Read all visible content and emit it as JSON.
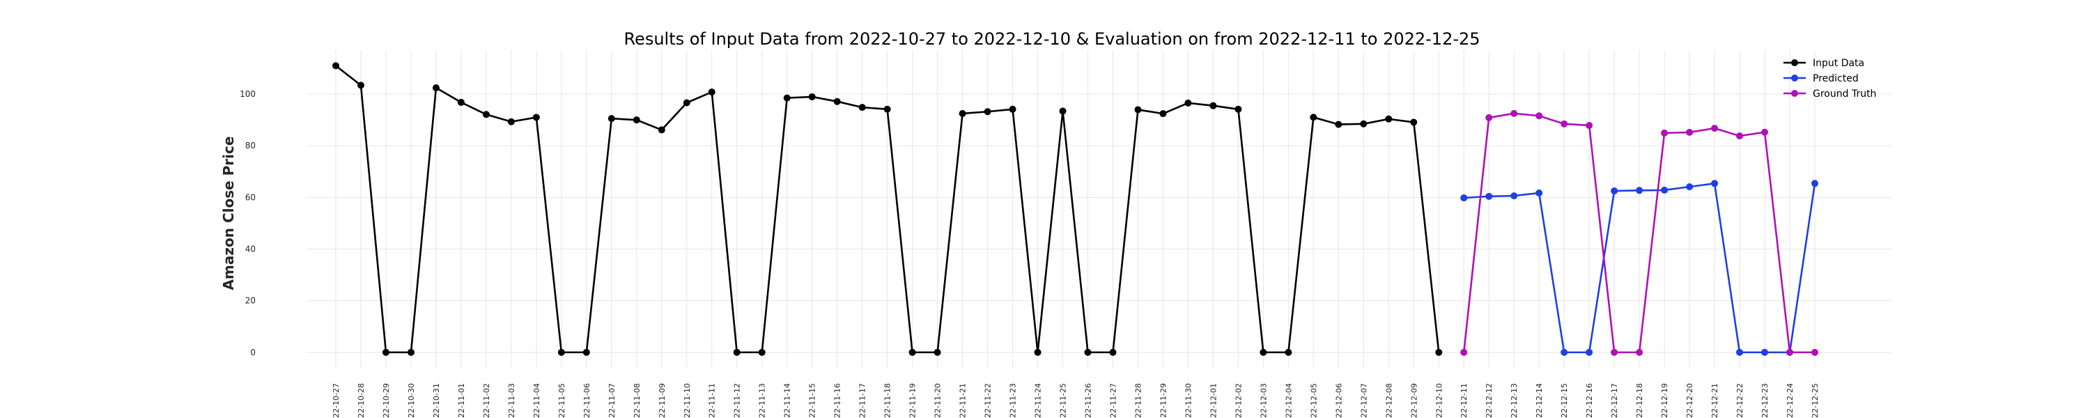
{
  "chart_data": {
    "type": "line",
    "title": "Results of Input Data from 2022-10-27 to 2022-12-10 & Evaluation on from 2022-12-11 to 2022-12-25",
    "xlabel": "",
    "ylabel": "Amazon Close Price",
    "ylim": [
      -6,
      117
    ],
    "yticks": [
      "0",
      "20",
      "40",
      "60",
      "80",
      "100"
    ],
    "grid": true,
    "legend_position": "top-right",
    "x": [
      "2022-10-27",
      "2022-10-28",
      "2022-10-29",
      "2022-10-30",
      "2022-10-31",
      "2022-11-01",
      "2022-11-02",
      "2022-11-03",
      "2022-11-04",
      "2022-11-05",
      "2022-11-06",
      "2022-11-07",
      "2022-11-08",
      "2022-11-09",
      "2022-11-10",
      "2022-11-11",
      "2022-11-12",
      "2022-11-13",
      "2022-11-14",
      "2022-11-15",
      "2022-11-16",
      "2022-11-17",
      "2022-11-18",
      "2022-11-19",
      "2022-11-20",
      "2022-11-21",
      "2022-11-22",
      "2022-11-23",
      "2022-11-24",
      "2022-11-25",
      "2022-11-26",
      "2022-11-27",
      "2022-11-28",
      "2022-11-29",
      "2022-11-30",
      "2022-12-01",
      "2022-12-02",
      "2022-12-03",
      "2022-12-04",
      "2022-12-05",
      "2022-12-06",
      "2022-12-07",
      "2022-12-08",
      "2022-12-09",
      "2022-12-10",
      "2022-12-11",
      "2022-12-12",
      "2022-12-13",
      "2022-12-14",
      "2022-12-15",
      "2022-12-16",
      "2022-12-17",
      "2022-12-18",
      "2022-12-19",
      "2022-12-20",
      "2022-12-21",
      "2022-12-22",
      "2022-12-23",
      "2022-12-24",
      "2022-12-25"
    ],
    "xtick_labels": [
      "-22-10-27",
      "-22-10-28",
      "-22-10-29",
      "-22-10-30",
      "-22-10-31",
      "-22-11-01",
      "-22-11-02",
      "-22-11-03",
      "-22-11-04",
      "-22-11-05",
      "-22-11-06",
      "-22-11-07",
      "-22-11-08",
      "-22-11-09",
      "-22-11-10",
      "-22-11-11",
      "-22-11-12",
      "-22-11-13",
      "-22-11-14",
      "-22-11-15",
      "-22-11-16",
      "-22-11-17",
      "-22-11-18",
      "-22-11-19",
      "-22-11-20",
      "-22-11-21",
      "-22-11-22",
      "-22-11-23",
      "-22-11-24",
      "-22-11-25",
      "-22-11-26",
      "-22-11-27",
      "-22-11-28",
      "-22-11-29",
      "-22-11-30",
      "-22-12-01",
      "-22-12-02",
      "-22-12-03",
      "-22-12-04",
      "-22-12-05",
      "-22-12-06",
      "-22-12-07",
      "-22-12-08",
      "-22-12-09",
      "-22-12-10",
      "-22-12-11",
      "-22-12-12",
      "-22-12-13",
      "-22-12-14",
      "-22-12-15",
      "-22-12-16",
      "-22-12-17",
      "-22-12-18",
      "-22-12-19",
      "-22-12-20",
      "-22-12-21",
      "-22-12-22",
      "-22-12-23",
      "-22-12-24",
      "-22-12-25"
    ],
    "series": [
      {
        "name": "Input Data",
        "color": "#000000",
        "x": [
          "2022-10-27",
          "2022-10-28",
          "2022-10-29",
          "2022-10-30",
          "2022-10-31",
          "2022-11-01",
          "2022-11-02",
          "2022-11-03",
          "2022-11-04",
          "2022-11-05",
          "2022-11-06",
          "2022-11-07",
          "2022-11-08",
          "2022-11-09",
          "2022-11-10",
          "2022-11-11",
          "2022-11-12",
          "2022-11-13",
          "2022-11-14",
          "2022-11-15",
          "2022-11-16",
          "2022-11-17",
          "2022-11-18",
          "2022-11-19",
          "2022-11-20",
          "2022-11-21",
          "2022-11-22",
          "2022-11-23",
          "2022-11-24",
          "2022-11-25",
          "2022-11-26",
          "2022-11-27",
          "2022-11-28",
          "2022-11-29",
          "2022-11-30",
          "2022-12-01",
          "2022-12-02",
          "2022-12-03",
          "2022-12-04",
          "2022-12-05",
          "2022-12-06",
          "2022-12-07",
          "2022-12-08",
          "2022-12-09",
          "2022-12-10"
        ],
        "values": [
          110.96,
          103.41,
          0,
          0,
          102.44,
          96.79,
          92.12,
          89.3,
          90.98,
          0,
          0,
          90.53,
          89.98,
          86.14,
          96.63,
          100.79,
          0,
          0,
          98.49,
          98.94,
          97.12,
          94.85,
          94.14,
          0,
          0,
          92.46,
          93.2,
          94.13,
          0,
          93.41,
          0,
          0,
          93.95,
          92.42,
          96.54,
          95.5,
          94.13,
          0,
          0,
          91.01,
          88.25,
          88.46,
          90.35,
          89.09,
          0
        ]
      },
      {
        "name": "Predicted",
        "color": "#1f3fe0",
        "x": [
          "2022-12-11",
          "2022-12-12",
          "2022-12-13",
          "2022-12-14",
          "2022-12-15",
          "2022-12-16",
          "2022-12-17",
          "2022-12-18",
          "2022-12-19",
          "2022-12-20",
          "2022-12-21",
          "2022-12-22",
          "2022-12-23",
          "2022-12-24",
          "2022-12-25"
        ],
        "values": [
          59.8,
          60.4,
          60.6,
          61.7,
          0,
          0,
          62.5,
          62.7,
          62.8,
          64.1,
          65.4,
          0,
          0,
          0,
          65.4
        ]
      },
      {
        "name": "Ground Truth",
        "color": "#b010b8",
        "x": [
          "2022-12-11",
          "2022-12-12",
          "2022-12-13",
          "2022-12-14",
          "2022-12-15",
          "2022-12-16",
          "2022-12-17",
          "2022-12-18",
          "2022-12-19",
          "2022-12-20",
          "2022-12-21",
          "2022-12-22",
          "2022-12-23",
          "2022-12-24",
          "2022-12-25"
        ],
        "values": [
          0,
          90.86,
          92.49,
          91.58,
          88.45,
          87.86,
          0,
          0,
          84.92,
          85.19,
          86.77,
          83.79,
          85.25,
          0,
          0
        ]
      }
    ]
  }
}
